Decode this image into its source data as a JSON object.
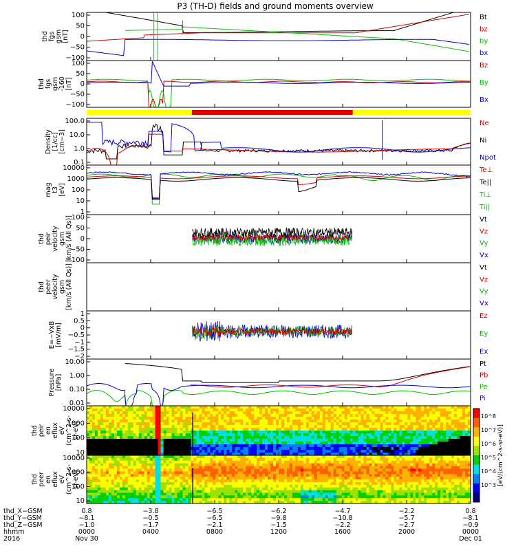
{
  "title": "P3 (TH-D) fields and ground moments overview",
  "panels": [
    {
      "id": "fgs",
      "ylabel": [
        "thd",
        "fgs",
        "gsm",
        "[nT]"
      ],
      "ticks": [
        "100",
        "50",
        "0",
        "−50",
        "−100"
      ],
      "legend": [
        {
          "text": "Bt",
          "color": "#000000"
        },
        {
          "text": "bz",
          "color": "#d00000"
        },
        {
          "text": "by",
          "color": "#00c000"
        },
        {
          "text": "bx",
          "color": "#0000d0"
        }
      ]
    },
    {
      "id": "fgs_detrend",
      "ylabel": [
        "thd",
        "fgs",
        "gsm",
        "-160",
        "[nT]"
      ],
      "ticks": [
        "100",
        "50",
        "0",
        "−50",
        "−100"
      ],
      "legend": [
        {
          "text": "Bz",
          "color": "#d00000"
        },
        {
          "text": "By",
          "color": "#00c000"
        },
        {
          "text": "Bx",
          "color": "#0000d0"
        }
      ]
    },
    {
      "id": "density",
      "ylabel": [
        "Density",
        "[1/cc]",
        "[cm−3]"
      ],
      "ticks": [
        "100.0",
        "10.0",
        "1.0",
        "0.1"
      ],
      "legend": [
        {
          "text": "Ne",
          "color": "#d00000"
        },
        {
          "text": "Ni",
          "color": "#000000"
        },
        {
          "text": "Npot",
          "color": "#0000d0"
        }
      ]
    },
    {
      "id": "temp",
      "ylabel": [
        "mag",
        "t3",
        "[eV]"
      ],
      "ticks": [
        "10000",
        "1000",
        "100",
        "10",
        "1"
      ],
      "legend": [
        {
          "text": "Te⊥",
          "color": "#d00000"
        },
        {
          "text": "Te||",
          "color": "#000000"
        },
        {
          "text": "Ti⊥",
          "color": "#00c000"
        },
        {
          "text": "Ti||",
          "color": "#00c000"
        }
      ]
    },
    {
      "id": "peir_vel",
      "ylabel": [
        "thd",
        "peir",
        "velocity",
        "gsm",
        "[km/s (All Qs)]"
      ],
      "ticks": [
        "100",
        "50",
        "0",
        "−50",
        "−100"
      ],
      "legend": [
        {
          "text": "Vt",
          "color": "#000000"
        },
        {
          "text": "Vz",
          "color": "#d00000"
        },
        {
          "text": "Vy",
          "color": "#00c000"
        },
        {
          "text": "Vx",
          "color": "#0000d0"
        }
      ]
    },
    {
      "id": "peer_vel",
      "ylabel": [
        "thd",
        "peer",
        "velocity",
        "gsm",
        "[km/s (All Qs)]"
      ],
      "ticks": [],
      "legend": [
        {
          "text": "Vt",
          "color": "#000000"
        },
        {
          "text": "Vz",
          "color": "#d00000"
        },
        {
          "text": "Vy",
          "color": "#00c000"
        },
        {
          "text": "Vx",
          "color": "#0000d0"
        }
      ]
    },
    {
      "id": "efield",
      "ylabel": [
        "E=−VxB",
        "[mV/m]"
      ],
      "ticks": [
        "1",
        "0.5",
        "0",
        "−0.5",
        "−1",
        "−1.5",
        "−2"
      ],
      "legend": [
        {
          "text": "Ez",
          "color": "#d00000"
        },
        {
          "text": "Ey",
          "color": "#00c000"
        },
        {
          "text": "Ex",
          "color": "#0000d0"
        }
      ]
    },
    {
      "id": "pressure",
      "ylabel": [
        "Pressure",
        "[nPa]"
      ],
      "ticks": [
        "10.00",
        "1.00",
        "0.10",
        "0.01"
      ],
      "legend": [
        {
          "text": "Pt",
          "color": "#000000"
        },
        {
          "text": "Pb",
          "color": "#d00000"
        },
        {
          "text": "Pe",
          "color": "#00c000"
        },
        {
          "text": "Pi",
          "color": "#0000d0"
        }
      ]
    },
    {
      "id": "peir_spec",
      "ylabel": [
        "thd",
        "peir",
        "en",
        "eflux",
        "eV",
        "(cm^2-s-",
        "sr-eV)"
      ],
      "ticks": [
        "10000",
        "1000",
        "100",
        "10"
      ],
      "legend": []
    },
    {
      "id": "peer_spec",
      "ylabel": [
        "thd",
        "peer",
        "en",
        "eflux",
        "eV",
        "(cm^2-s-",
        "sr-eV)"
      ],
      "ticks": [
        "10000",
        "1000",
        "100",
        "10"
      ],
      "legend": []
    }
  ],
  "colorbar": {
    "label": "[eV/(cm^2-s-sr-eV)]",
    "ticks": [
      "10^8",
      "10^7",
      "10^6",
      "10^5",
      "10^4",
      "10^3"
    ]
  },
  "footer": {
    "rows": [
      {
        "label": "thd_X−GSM",
        "values": [
          "0.8",
          "−3.8",
          "−6.5",
          "−6.2",
          "−4.7",
          "−2.2",
          "0.8"
        ]
      },
      {
        "label": "thd_Y−GSM",
        "values": [
          "−8.1",
          "−0.5",
          "−6.5",
          "−9.8",
          "−10.8",
          "−5.7",
          "−8.1"
        ]
      },
      {
        "label": "thd_Z−GSM",
        "values": [
          "−1.0",
          "−1.7",
          "−2.1",
          "−1.5",
          "−2.2",
          "−2.7",
          "−0.9"
        ]
      },
      {
        "label": "hhmm",
        "values": [
          "0000",
          "0400",
          "0800",
          "1200",
          "1600",
          "2000",
          "0000"
        ]
      },
      {
        "label": "2016",
        "values": [
          "Nov 30",
          "",
          "",
          "",
          "",
          "",
          "Dec 01"
        ]
      }
    ]
  },
  "chart_data": [
    {
      "type": "line",
      "title": "P3 (TH-D) fields and ground moments overview",
      "ylabel": "thd fgs gsm [nT]",
      "ylim": [
        -100,
        100
      ],
      "x": [
        "0000",
        "0400",
        "0800",
        "1200",
        "1600",
        "2000",
        "0000"
      ],
      "series": [
        {
          "name": "Bt",
          "values": [
            100,
            60,
            20,
            12,
            20,
            40,
            100
          ]
        },
        {
          "name": "bz",
          "values": [
            -20,
            10,
            20,
            12,
            22,
            40,
            90
          ]
        },
        {
          "name": "by",
          "values": [
            0,
            30,
            10,
            5,
            0,
            -20,
            -60
          ]
        },
        {
          "name": "bx",
          "values": [
            -100,
            -20,
            -10,
            -5,
            -3,
            -10,
            -40
          ]
        }
      ]
    },
    {
      "type": "line",
      "ylabel": "thd fgs gsm -160 [nT]",
      "ylim": [
        -120,
        100
      ],
      "series": [
        {
          "name": "Bz",
          "values": [
            0,
            -110,
            0,
            0,
            -2,
            0,
            0
          ]
        },
        {
          "name": "By",
          "values": [
            10,
            -100,
            5,
            8,
            8,
            10,
            5
          ]
        },
        {
          "name": "Bx",
          "values": [
            -5,
            100,
            -3,
            2,
            0,
            0,
            -5
          ]
        }
      ]
    },
    {
      "type": "line",
      "ylabel": "Density [1/cc]",
      "ylim": [
        0.1,
        100
      ],
      "yscale": "log",
      "series": [
        {
          "name": "Ne",
          "values": [
            1,
            10,
            1,
            0.5,
            0.4,
            0.6,
            1.5
          ]
        },
        {
          "name": "Ni",
          "values": [
            0.8,
            8,
            0.8,
            0.4,
            0.35,
            0.5,
            1.2
          ]
        },
        {
          "name": "Npot",
          "values": [
            2,
            20,
            3,
            0.6,
            0.5,
            0.8,
            2
          ]
        }
      ]
    },
    {
      "type": "line",
      "ylabel": "magt3 [eV]",
      "ylim": [
        1,
        10000
      ],
      "yscale": "log",
      "series": [
        {
          "name": "Te⊥",
          "values": [
            2000,
            1500,
            2000,
            1500,
            1500,
            1200,
            900
          ]
        },
        {
          "name": "Te||",
          "values": [
            1500,
            1200,
            1500,
            1200,
            1200,
            1000,
            800
          ]
        },
        {
          "name": "Ti⊥",
          "values": [
            3000,
            2000,
            3500,
            3000,
            3000,
            2500,
            2000
          ]
        },
        {
          "name": "Ti||",
          "values": [
            3000,
            2000,
            3500,
            3000,
            3000,
            2500,
            2000
          ]
        }
      ]
    },
    {
      "type": "line",
      "ylabel": "thd peir velocity gsm [km/s (All Qs)]",
      "ylim": [
        -100,
        100
      ],
      "series": [
        {
          "name": "Vt",
          "values": [
            null,
            null,
            30,
            30,
            30,
            null,
            null
          ]
        },
        {
          "name": "Vz",
          "values": [
            null,
            null,
            0,
            0,
            0,
            null,
            null
          ]
        },
        {
          "name": "Vy",
          "values": [
            null,
            null,
            -10,
            -10,
            -10,
            null,
            null
          ]
        },
        {
          "name": "Vx",
          "values": [
            null,
            null,
            0,
            0,
            0,
            null,
            null
          ]
        }
      ]
    },
    {
      "type": "line",
      "ylabel": "E=-VxB [mV/m]",
      "ylim": [
        -2,
        1.5
      ],
      "series": [
        {
          "name": "Ez",
          "values": [
            null,
            0,
            0,
            0,
            0,
            null,
            null
          ]
        },
        {
          "name": "Ey",
          "values": [
            null,
            0,
            0,
            0,
            0,
            null,
            null
          ]
        },
        {
          "name": "Ex",
          "values": [
            null,
            0,
            0,
            0,
            0,
            null,
            null
          ]
        }
      ]
    },
    {
      "type": "line",
      "ylabel": "Pressure [nPa]",
      "ylim": [
        0.005,
        10
      ],
      "yscale": "log",
      "series": [
        {
          "name": "Pt",
          "values": [
            10,
            8,
            0.3,
            0.2,
            0.25,
            0.6,
            3
          ]
        },
        {
          "name": "Pb",
          "values": [
            5,
            4,
            0.2,
            0.12,
            0.18,
            0.5,
            3
          ]
        },
        {
          "name": "Pe",
          "values": [
            0.1,
            0.08,
            0.05,
            0.04,
            0.05,
            0.06,
            0.06
          ]
        },
        {
          "name": "Pi",
          "values": [
            0.2,
            0.15,
            0.15,
            0.15,
            0.15,
            0.12,
            0.1
          ]
        }
      ]
    },
    {
      "type": "heatmap",
      "ylabel": "thd peir en eflux eV/(cm^2-s-sr-eV)",
      "ylim": [
        5,
        20000
      ],
      "yscale": "log",
      "zlabel": "[eV/(cm^2-s-sr-eV)]"
    },
    {
      "type": "heatmap",
      "ylabel": "thd peer en eflux eV/(cm^2-s-sr-eV)",
      "ylim": [
        5,
        20000
      ],
      "yscale": "log",
      "zlabel": "[eV/(cm^2-s-sr-eV)]"
    }
  ]
}
